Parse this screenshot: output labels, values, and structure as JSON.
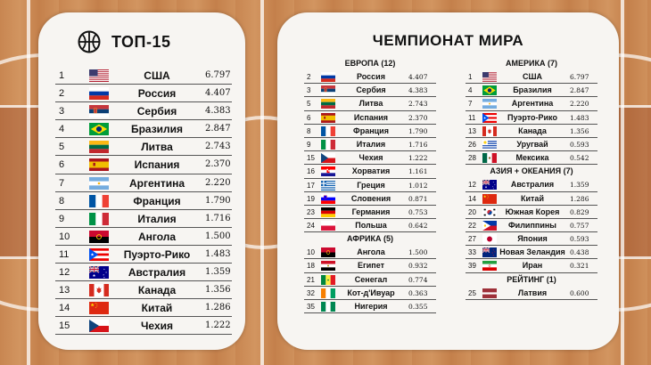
{
  "left": {
    "title": "ТОП-15",
    "rows": [
      {
        "rank": "1",
        "flag": "usa",
        "name": "США",
        "value": "6.797"
      },
      {
        "rank": "2",
        "flag": "russia",
        "name": "Россия",
        "value": "4.407"
      },
      {
        "rank": "3",
        "flag": "serbia",
        "name": "Сербия",
        "value": "4.383"
      },
      {
        "rank": "4",
        "flag": "brazil",
        "name": "Бразилия",
        "value": "2.847"
      },
      {
        "rank": "5",
        "flag": "lithuania",
        "name": "Литва",
        "value": "2.743"
      },
      {
        "rank": "6",
        "flag": "spain",
        "name": "Испания",
        "value": "2.370"
      },
      {
        "rank": "7",
        "flag": "argentina",
        "name": "Аргентина",
        "value": "2.220"
      },
      {
        "rank": "8",
        "flag": "france",
        "name": "Франция",
        "value": "1.790"
      },
      {
        "rank": "9",
        "flag": "italy",
        "name": "Италия",
        "value": "1.716"
      },
      {
        "rank": "10",
        "flag": "angola",
        "name": "Ангола",
        "value": "1.500"
      },
      {
        "rank": "11",
        "flag": "puerto_rico",
        "name": "Пуэрто-Рико",
        "value": "1.483"
      },
      {
        "rank": "12",
        "flag": "australia",
        "name": "Австралия",
        "value": "1.359"
      },
      {
        "rank": "13",
        "flag": "canada",
        "name": "Канада",
        "value": "1.356"
      },
      {
        "rank": "14",
        "flag": "china",
        "name": "Китай",
        "value": "1.286"
      },
      {
        "rank": "15",
        "flag": "czechia",
        "name": "Чехия",
        "value": "1.222"
      }
    ]
  },
  "right": {
    "title": "ЧЕМПИОНАТ МИРА",
    "columns": [
      [
        {
          "title": "ЕВРОПА (12)",
          "rows": [
            {
              "rank": "2",
              "flag": "russia",
              "name": "Россия",
              "value": "4.407"
            },
            {
              "rank": "3",
              "flag": "serbia",
              "name": "Сербия",
              "value": "4.383"
            },
            {
              "rank": "5",
              "flag": "lithuania",
              "name": "Литва",
              "value": "2.743"
            },
            {
              "rank": "6",
              "flag": "spain",
              "name": "Испания",
              "value": "2.370"
            },
            {
              "rank": "8",
              "flag": "france",
              "name": "Франция",
              "value": "1.790"
            },
            {
              "rank": "9",
              "flag": "italy",
              "name": "Италия",
              "value": "1.716"
            },
            {
              "rank": "15",
              "flag": "czechia",
              "name": "Чехия",
              "value": "1.222"
            },
            {
              "rank": "16",
              "flag": "croatia",
              "name": "Хорватия",
              "value": "1.161"
            },
            {
              "rank": "17",
              "flag": "greece",
              "name": "Греция",
              "value": "1.012"
            },
            {
              "rank": "19",
              "flag": "slovenia",
              "name": "Словения",
              "value": "0.871"
            },
            {
              "rank": "23",
              "flag": "germany",
              "name": "Германия",
              "value": "0.753"
            },
            {
              "rank": "24",
              "flag": "poland",
              "name": "Польша",
              "value": "0.642"
            }
          ]
        },
        {
          "title": "АФРИКА (5)",
          "rows": [
            {
              "rank": "10",
              "flag": "angola",
              "name": "Ангола",
              "value": "1.500"
            },
            {
              "rank": "18",
              "flag": "egypt",
              "name": "Египет",
              "value": "0.932"
            },
            {
              "rank": "21",
              "flag": "senegal",
              "name": "Сенегал",
              "value": "0.774"
            },
            {
              "rank": "32",
              "flag": "ivory_coast",
              "name": "Кот-д'Ивуар",
              "value": "0.363"
            },
            {
              "rank": "35",
              "flag": "nigeria",
              "name": "Нигерия",
              "value": "0.355"
            }
          ]
        }
      ],
      [
        {
          "title": "АМЕРИКА (7)",
          "rows": [
            {
              "rank": "1",
              "flag": "usa",
              "name": "США",
              "value": "6.797"
            },
            {
              "rank": "4",
              "flag": "brazil",
              "name": "Бразилия",
              "value": "2.847"
            },
            {
              "rank": "7",
              "flag": "argentina",
              "name": "Аргентина",
              "value": "2.220"
            },
            {
              "rank": "11",
              "flag": "puerto_rico",
              "name": "Пуэрто-Рико",
              "value": "1.483"
            },
            {
              "rank": "13",
              "flag": "canada",
              "name": "Канада",
              "value": "1.356"
            },
            {
              "rank": "26",
              "flag": "uruguay",
              "name": "Уругвай",
              "value": "0.593"
            },
            {
              "rank": "28",
              "flag": "mexico",
              "name": "Мексика",
              "value": "0.542"
            }
          ]
        },
        {
          "title": "АЗИЯ + ОКЕАНИЯ (7)",
          "rows": [
            {
              "rank": "12",
              "flag": "australia",
              "name": "Австралия",
              "value": "1.359"
            },
            {
              "rank": "14",
              "flag": "china",
              "name": "Китай",
              "value": "1.286"
            },
            {
              "rank": "20",
              "flag": "south_korea",
              "name": "Южная Корея",
              "value": "0.829"
            },
            {
              "rank": "22",
              "flag": "philippines",
              "name": "Филиппины",
              "value": "0.757"
            },
            {
              "rank": "27",
              "flag": "japan",
              "name": "Япония",
              "value": "0.593"
            },
            {
              "rank": "33",
              "flag": "new_zealand",
              "name": "Новая Зеландия",
              "value": "0.438"
            },
            {
              "rank": "39",
              "flag": "iran",
              "name": "Иран",
              "value": "0.321"
            }
          ]
        },
        {
          "title": "РЕЙТИНГ (1)",
          "rows": [
            {
              "rank": "25",
              "flag": "latvia",
              "name": "Латвия",
              "value": "0.600"
            }
          ]
        }
      ]
    ]
  }
}
